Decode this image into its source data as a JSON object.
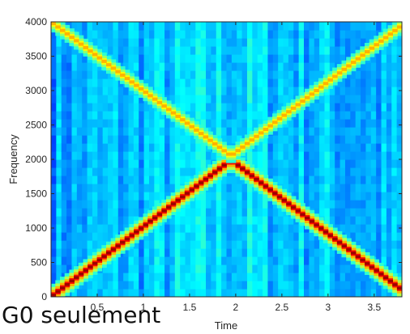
{
  "caption": "G0 seulement",
  "chart_data": {
    "type": "heatmap",
    "title": "",
    "xlabel": "Time",
    "ylabel": "Frequency",
    "xlim": [
      0,
      3.8
    ],
    "ylim": [
      0,
      4000
    ],
    "xticks": [
      0.5,
      1,
      1.5,
      2,
      2.5,
      3,
      3.5
    ],
    "xtick_labels": [
      "0.5",
      "1",
      "1.5",
      "2",
      "2.5",
      "3",
      "3.5"
    ],
    "yticks": [
      0,
      500,
      1000,
      1500,
      2000,
      2500,
      3000,
      3500,
      4000
    ],
    "ytick_labels": [
      "0",
      "500",
      "1000",
      "1500",
      "2000",
      "2500",
      "3000",
      "3500",
      "4000"
    ],
    "colormap": "jet",
    "series": [
      {
        "x": [
          0,
          1.95,
          3.8
        ],
        "y": [
          0,
          1990,
          100
        ],
        "intensity": "high"
      },
      {
        "x": [
          0,
          1.95,
          3.8
        ],
        "y": [
          4000,
          2050,
          3950
        ],
        "intensity": "medium"
      }
    ],
    "grid": false,
    "legend": "none"
  }
}
